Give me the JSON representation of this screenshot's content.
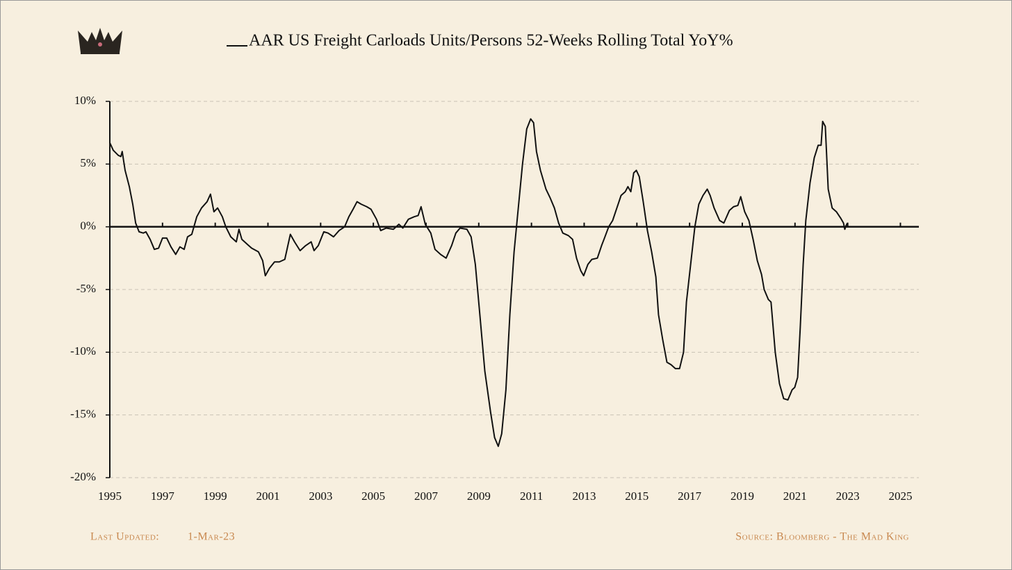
{
  "chart_data": {
    "type": "line",
    "series": [
      {
        "name": "AAR US Freight Carloads Units/Persons 52-Weeks Rolling Total YoY%",
        "color": "#111111",
        "values": [
          6.7,
          6.1,
          5.7,
          5.6,
          6.0,
          4.5,
          3.2,
          1.8,
          0.3,
          -0.4,
          -0.5,
          -0.4,
          -1.0,
          -1.8,
          -1.7,
          -0.9,
          -0.9,
          -1.6,
          -2.2,
          -1.6,
          -1.8,
          -0.8,
          -0.6,
          0.8,
          1.5,
          2.0,
          2.6,
          1.2,
          1.5,
          0.8,
          0.0,
          -0.8,
          -1.2,
          -0.2,
          -1.0,
          -1.4,
          -1.7,
          -2.0,
          -2.7,
          -3.9,
          -3.3,
          -2.8,
          -2.8,
          -2.6,
          -0.6,
          -1.2,
          -1.9,
          -1.5,
          -1.2,
          -1.9,
          -1.5,
          -0.4,
          -0.5,
          -0.8,
          -0.3,
          0.0,
          0.8,
          1.4,
          2.0,
          1.8,
          1.6,
          1.4,
          0.6,
          -0.3,
          -0.1,
          -0.2,
          0.2,
          -0.1,
          0.6,
          0.8,
          0.9,
          1.6,
          0.2,
          -0.5,
          -1.8,
          -2.2,
          -2.5,
          -1.5,
          -0.5,
          -0.1,
          -0.2,
          -0.8,
          -3.0,
          -6.5,
          -11.5,
          -14.8,
          -16.8,
          -17.5,
          -16.5,
          -13.0,
          -7.0,
          -2.0,
          1.5,
          5.0,
          7.8,
          8.6,
          8.3,
          6.0,
          4.5,
          3.0,
          2.3,
          1.5,
          0.3,
          -0.5,
          -0.7,
          -1.0,
          -2.5,
          -3.5,
          -3.9,
          -3.0,
          -2.6,
          -2.5,
          -1.5,
          -0.9,
          0.0,
          0.5,
          1.5,
          2.5,
          2.8,
          3.2,
          2.8,
          4.3,
          4.5,
          4.0,
          2.0,
          -0.3,
          -2.0,
          -4.0,
          -7.0,
          -9.0,
          -10.8,
          -11.0,
          -11.3,
          -11.3,
          -10.0,
          -6.0,
          -3.0,
          0.0,
          1.8,
          2.5,
          3.0,
          2.5,
          1.5,
          0.5,
          0.3,
          1.3,
          1.6,
          1.7,
          2.4,
          1.2,
          0.5,
          -1.0,
          -2.7,
          -3.8,
          -5.0,
          -5.8,
          -6.0,
          -10.0,
          -12.5,
          -13.7,
          -13.8,
          -13.0,
          -12.8,
          -12.0,
          -8.0,
          -3.0,
          0.5,
          3.5,
          5.5,
          6.5,
          6.5,
          8.4,
          8.0,
          3.0,
          1.5,
          1.2,
          0.7,
          0.3,
          -0.2,
          0.1,
          0.3
        ]
      }
    ],
    "x": [
      1995.0,
      1995.13,
      1995.32,
      1995.42,
      1995.47,
      1995.58,
      1995.74,
      1995.87,
      1995.98,
      1996.11,
      1996.27,
      1996.37,
      1996.53,
      1996.69,
      1996.85,
      1997.0,
      1997.16,
      1997.32,
      1997.5,
      1997.66,
      1997.82,
      1997.95,
      1998.11,
      1998.3,
      1998.48,
      1998.69,
      1998.82,
      1998.95,
      1999.09,
      1999.27,
      1999.4,
      1999.59,
      1999.8,
      1999.9,
      2000.01,
      2000.22,
      2000.38,
      2000.64,
      2000.8,
      2000.9,
      2001.06,
      2001.25,
      2001.43,
      2001.64,
      2001.85,
      2002.01,
      2002.22,
      2002.43,
      2002.64,
      2002.75,
      2002.91,
      2003.12,
      2003.28,
      2003.49,
      2003.7,
      2003.91,
      2004.07,
      2004.23,
      2004.38,
      2004.54,
      2004.75,
      2004.91,
      2005.12,
      2005.28,
      2005.49,
      2005.76,
      2005.97,
      2006.12,
      2006.33,
      2006.55,
      2006.7,
      2006.81,
      2006.97,
      2007.18,
      2007.34,
      2007.55,
      2007.76,
      2007.97,
      2008.13,
      2008.29,
      2008.55,
      2008.71,
      2008.87,
      2009.02,
      2009.23,
      2009.45,
      2009.6,
      2009.74,
      2009.87,
      2010.03,
      2010.18,
      2010.34,
      2010.5,
      2010.66,
      2010.82,
      2010.97,
      2011.08,
      2011.19,
      2011.34,
      2011.55,
      2011.71,
      2011.87,
      2012.03,
      2012.19,
      2012.4,
      2012.56,
      2012.71,
      2012.87,
      2012.98,
      2013.14,
      2013.29,
      2013.5,
      2013.66,
      2013.77,
      2013.93,
      2014.08,
      2014.24,
      2014.4,
      2014.56,
      2014.66,
      2014.77,
      2014.88,
      2014.98,
      2015.09,
      2015.24,
      2015.4,
      2015.56,
      2015.72,
      2015.82,
      2015.98,
      2016.14,
      2016.3,
      2016.46,
      2016.62,
      2016.77,
      2016.88,
      2017.04,
      2017.2,
      2017.35,
      2017.51,
      2017.67,
      2017.78,
      2017.93,
      2018.14,
      2018.3,
      2018.51,
      2018.67,
      2018.83,
      2018.94,
      2019.09,
      2019.25,
      2019.41,
      2019.57,
      2019.73,
      2019.83,
      2019.99,
      2020.09,
      2020.25,
      2020.41,
      2020.57,
      2020.73,
      2020.89,
      2020.99,
      2021.1,
      2021.2,
      2021.31,
      2021.41,
      2021.57,
      2021.73,
      2021.88,
      2021.99,
      2022.05,
      2022.15,
      2022.26,
      2022.41,
      2022.57,
      2022.73,
      2022.84,
      2022.89,
      2022.94,
      2022.99
    ],
    "xlim": [
      1995,
      2025.7
    ],
    "xticks": [
      1995,
      1997,
      1999,
      2001,
      2003,
      2005,
      2007,
      2009,
      2011,
      2013,
      2015,
      2017,
      2019,
      2021,
      2023,
      2025
    ],
    "ylim": [
      -20,
      10
    ],
    "yticks": [
      {
        "value": -20,
        "label": "-20%"
      },
      {
        "value": -15,
        "label": "-15%"
      },
      {
        "value": -10,
        "label": "-10%"
      },
      {
        "value": -5,
        "label": "-5%"
      },
      {
        "value": 0,
        "label": "0%"
      },
      {
        "value": 5,
        "label": "5%"
      },
      {
        "value": 10,
        "label": "10%"
      }
    ],
    "grid": true,
    "legend": "top",
    "last_updated_label": "Last Updated:",
    "last_updated": "1-Mar-23",
    "source": "Source: Bloomberg - The Mad King"
  }
}
